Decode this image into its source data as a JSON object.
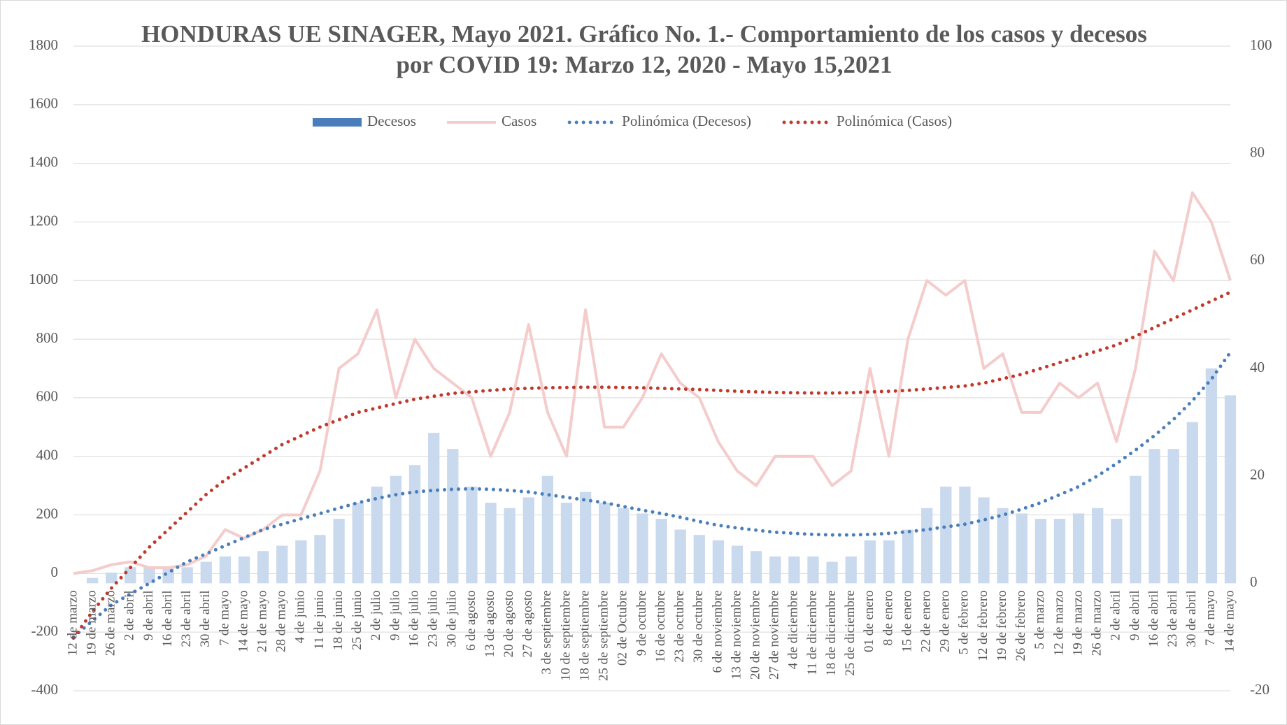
{
  "chart_data": {
    "type": "combo",
    "title": "HONDURAS UE SINAGER, Mayo 2021.  Gráfico No. 1.-  Comportamiento de los casos y decesos por COVID 19: Marzo 12, 2020 - Mayo 15,2021",
    "categories": [
      "12 de marzo",
      "19 de marzo",
      "26 de marzo",
      "2 de abril",
      "9 de abril",
      "16 de abril",
      "23 de abril",
      "30 de abril",
      "7 de mayo",
      "14 de mayo",
      "21 de mayo",
      "28 de mayo",
      "4 de junio",
      "11 de junio",
      "18 de junio",
      "25 de junio",
      "2 de julio",
      "9 de julio",
      "16 de julio",
      "23 de julio",
      "30 de julio",
      "6 de agosto",
      "13 de agosto",
      "20 de agosto",
      "27 de agosto",
      "3 de septiembre",
      "10 de septiembre",
      "18 de septiembre",
      "25 de septiembre",
      "02 de Octubre",
      "9 de octubre",
      "16 de octubre",
      "23 de octubre",
      "30 de octubre",
      "6 de noviembre",
      "13 de noviembre",
      "20 de noviembre",
      "27 de noviembre",
      "4 de diciembre",
      "11 de diciembre",
      "18 de diciembre",
      "25 de diciembre",
      "01 de enero",
      "8 de enero",
      "15 de enero",
      "22 de enero",
      "29 de enero",
      "5 de febrero",
      "12 de febrero",
      "19 de febrero",
      "26 de febrero",
      "5 de marzo",
      "12 de marzo",
      "19 de marzo",
      "26 de marzo",
      "2 de abril",
      "9 de abril",
      "16 de abril",
      "23 de abril",
      "30 de abril",
      "7 de mayo",
      "14 de mayo"
    ],
    "series": [
      {
        "name": "Decesos",
        "kind": "bar",
        "axis": "y2",
        "color": "#c9d9ee",
        "legend_color": "#4a7ebb",
        "values": [
          0,
          1,
          2,
          3,
          3,
          3,
          3,
          4,
          5,
          5,
          6,
          7,
          8,
          9,
          12,
          15,
          18,
          20,
          22,
          28,
          25,
          18,
          15,
          14,
          16,
          20,
          15,
          17,
          15,
          14,
          13,
          12,
          10,
          9,
          8,
          7,
          6,
          5,
          5,
          5,
          4,
          5,
          8,
          8,
          10,
          14,
          18,
          18,
          16,
          14,
          13,
          12,
          12,
          13,
          14,
          12,
          20,
          25,
          25,
          30,
          40,
          35
        ]
      },
      {
        "name": "Casos",
        "kind": "line",
        "axis": "y",
        "color": "#f4cccc",
        "values": [
          0,
          10,
          30,
          40,
          20,
          20,
          30,
          60,
          150,
          120,
          150,
          200,
          200,
          350,
          700,
          750,
          900,
          600,
          800,
          700,
          650,
          600,
          400,
          550,
          850,
          550,
          400,
          900,
          500,
          500,
          600,
          750,
          650,
          600,
          450,
          350,
          300,
          400,
          400,
          400,
          300,
          350,
          700,
          400,
          800,
          1000,
          950,
          1000,
          700,
          750,
          550,
          550,
          650,
          600,
          650,
          450,
          700,
          1100,
          1000,
          1300,
          1200,
          1000
        ]
      },
      {
        "name": "Polinómica (Decesos)",
        "kind": "dotted",
        "axis": "y2",
        "color": "#4a7ebb",
        "values": [
          -10,
          -7,
          -4,
          -2,
          0,
          2,
          4,
          5.5,
          7,
          8.5,
          10,
          11,
          12,
          13,
          14,
          15,
          15.8,
          16.5,
          17,
          17.3,
          17.5,
          17.6,
          17.5,
          17.3,
          17,
          16.5,
          16,
          15.5,
          15,
          14.3,
          13.6,
          13,
          12.3,
          11.5,
          10.8,
          10.3,
          9.9,
          9.5,
          9.3,
          9.1,
          9,
          9,
          9.1,
          9.3,
          9.6,
          10,
          10.5,
          11,
          11.8,
          12.7,
          13.8,
          15,
          16.5,
          18,
          20,
          22.3,
          24.8,
          27.5,
          30.5,
          34,
          38,
          43
        ]
      },
      {
        "name": "Polinómica (Casos)",
        "kind": "dotted",
        "axis": "y",
        "color": "#c0392b",
        "values": [
          -220,
          -130,
          -50,
          20,
          90,
          150,
          210,
          270,
          320,
          360,
          400,
          440,
          470,
          500,
          525,
          550,
          565,
          580,
          595,
          605,
          615,
          620,
          625,
          630,
          632,
          634,
          635,
          636,
          636,
          635,
          634,
          632,
          630,
          628,
          625,
          622,
          620,
          618,
          617,
          616,
          616,
          617,
          620,
          622,
          625,
          630,
          635,
          640,
          650,
          665,
          680,
          700,
          720,
          740,
          760,
          780,
          810,
          840,
          870,
          900,
          930,
          960
        ]
      }
    ],
    "ylim": [
      -400,
      1800
    ],
    "yticks": [
      -400,
      -200,
      0,
      200,
      400,
      600,
      800,
      1000,
      1200,
      1400,
      1600,
      1800
    ],
    "y2lim": [
      -20,
      100
    ],
    "y2ticks": [
      -20,
      0,
      20,
      40,
      60,
      80,
      100
    ],
    "grid": true,
    "legend": "top"
  }
}
